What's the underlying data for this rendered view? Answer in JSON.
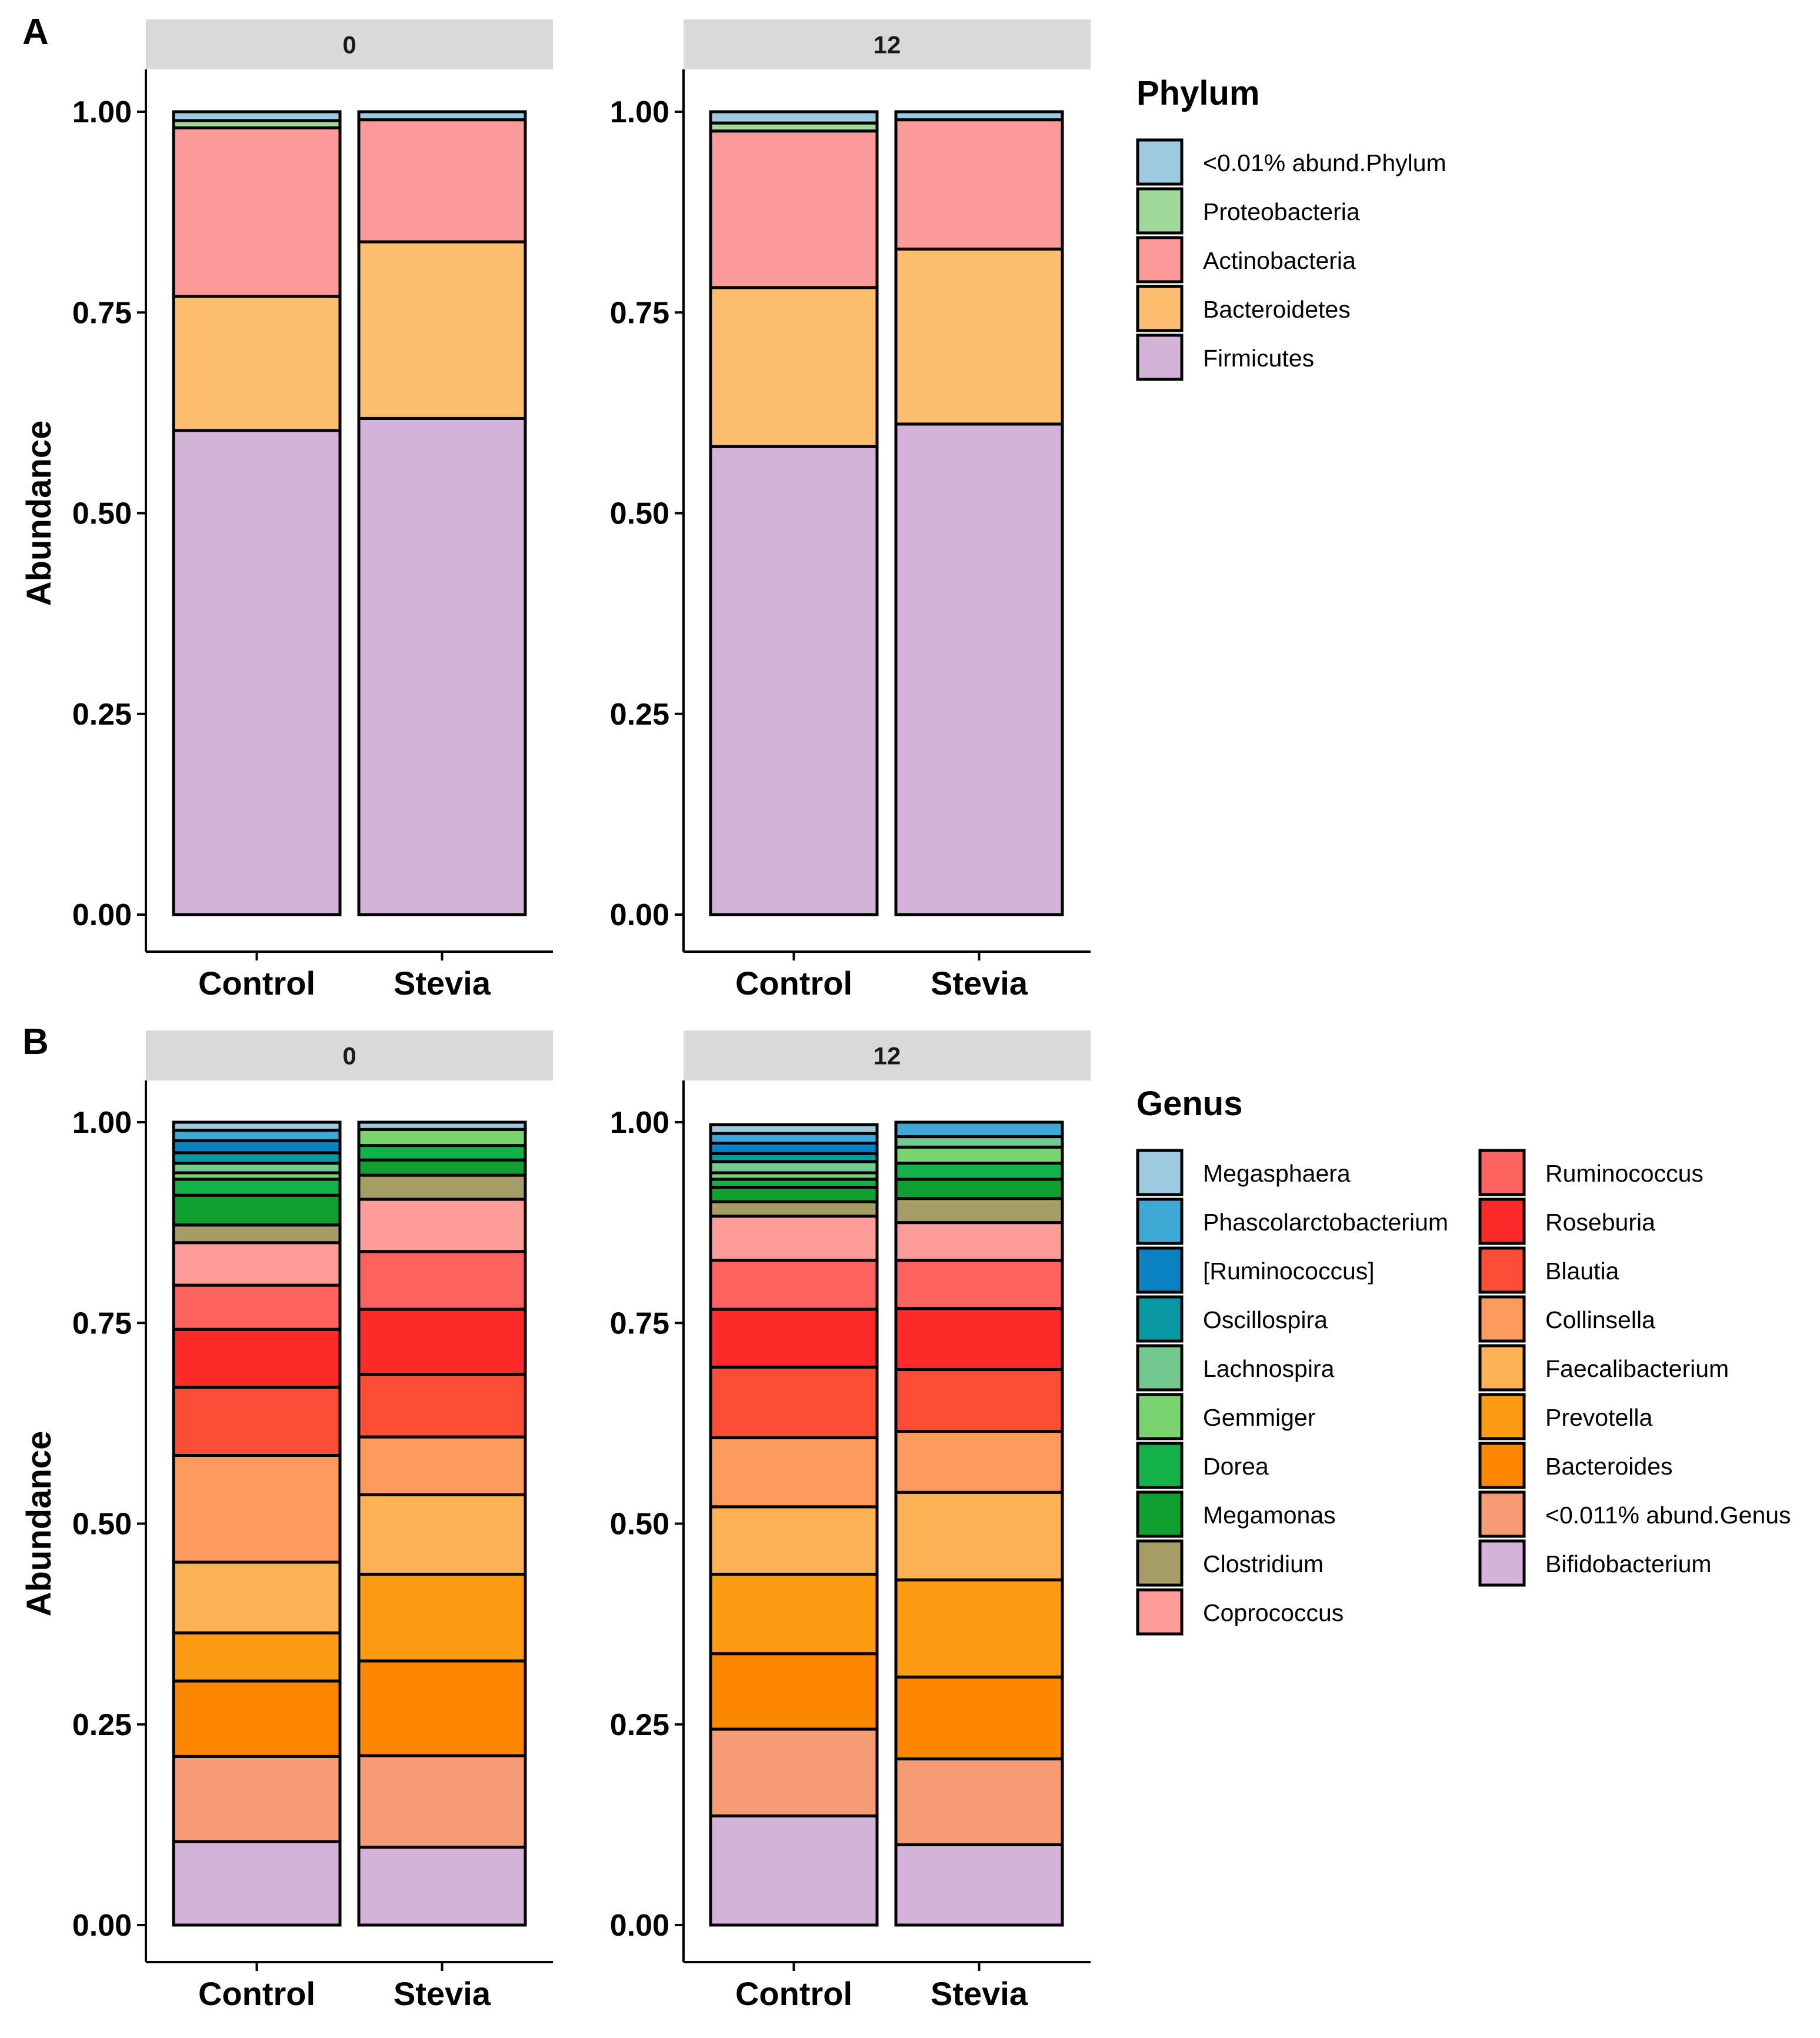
{
  "chart_data": [
    {
      "panel": "A",
      "type": "bar",
      "stacked": true,
      "ylabel": "Abundance",
      "ylim": [
        0,
        1
      ],
      "yticks": [
        "0.00",
        "0.25",
        "0.50",
        "0.75",
        "1.00"
      ],
      "categories": [
        "Control",
        "Stevia"
      ],
      "facets": [
        {
          "strip": "0",
          "bars": [
            {
              "group": "Control",
              "values": [
                0.603,
                0.167,
                0.21,
                0.009,
                0.011
              ]
            },
            {
              "group": "Stevia",
              "values": [
                0.618,
                0.22,
                0.152,
                0.0,
                0.01
              ]
            }
          ]
        },
        {
          "strip": "12",
          "bars": [
            {
              "group": "Control",
              "values": [
                0.583,
                0.198,
                0.195,
                0.01,
                0.014
              ]
            },
            {
              "group": "Stevia",
              "values": [
                0.611,
                0.218,
                0.161,
                0.0,
                0.01
              ]
            }
          ]
        }
      ],
      "legend": {
        "title": "Phylum",
        "entries": [
          {
            "name": "<0.01% abund.Phylum",
            "color": "#9ecae1"
          },
          {
            "name": "Proteobacteria",
            "color": "#a1d99b"
          },
          {
            "name": "Actinobacteria",
            "color": "#fb9a99"
          },
          {
            "name": "Bacteroidetes",
            "color": "#fdbf6f"
          },
          {
            "name": "Firmicutes",
            "color": "#d4b3d8"
          }
        ]
      }
    },
    {
      "panel": "B",
      "type": "bar",
      "stacked": true,
      "ylabel": "Abundance",
      "ylim": [
        0,
        1
      ],
      "yticks": [
        "0.00",
        "0.25",
        "0.50",
        "0.75",
        "1.00"
      ],
      "categories": [
        "Control",
        "Stevia"
      ],
      "facets": [
        {
          "strip": "0",
          "bars": [
            {
              "group": "Control",
              "values": [
                0.104,
                0.106,
                0.094,
                0.06,
                0.088,
                0.133,
                0.085,
                0.072,
                0.055,
                0.053,
                0.022,
                0.037,
                0.02,
                0.008,
                0.012,
                0.013,
                0.015,
                0.013,
                0.01
              ]
            },
            {
              "group": "Stevia",
              "values": [
                0.097,
                0.114,
                0.118,
                0.108,
                0.099,
                0.072,
                0.078,
                0.081,
                0.072,
                0.065,
                0.03,
                0.019,
                0.018,
                0.02,
                0.0,
                0.0,
                0.0,
                0.0,
                0.009
              ]
            }
          ]
        },
        {
          "strip": "12",
          "bars": [
            {
              "group": "Control",
              "values": [
                0.136,
                0.108,
                0.094,
                0.099,
                0.084,
                0.086,
                0.088,
                0.072,
                0.061,
                0.055,
                0.018,
                0.018,
                0.01,
                0.008,
                0.014,
                0.01,
                0.013,
                0.012,
                0.011
              ]
            },
            {
              "group": "Stevia",
              "values": [
                0.1,
                0.107,
                0.102,
                0.121,
                0.109,
                0.076,
                0.077,
                0.076,
                0.06,
                0.047,
                0.03,
                0.024,
                0.02,
                0.02,
                0.013,
                0.0,
                0.0,
                0.018,
                0.0
              ]
            }
          ]
        }
      ],
      "legend": {
        "title": "Genus",
        "stack_order": [
          "Bifidobacterium",
          "<0.011% abund.Genus",
          "Bacteroides",
          "Prevotella",
          "Faecalibacterium",
          "Collinsella",
          "Blautia",
          "Roseburia",
          "Ruminococcus",
          "Coprococcus",
          "Clostridium",
          "Megamonas",
          "Dorea",
          "Gemmiger",
          "Lachnospira",
          "Oscillospira",
          "[Ruminococcus]",
          "Phascolarctobacterium",
          "Megasphaera"
        ],
        "entries": [
          {
            "name": "Megasphaera",
            "color": "#9ecae1"
          },
          {
            "name": "Phascolarctobacterium",
            "color": "#3fa9d5"
          },
          {
            "name": "[Ruminococcus]",
            "color": "#0a81c1"
          },
          {
            "name": "Oscillospira",
            "color": "#0b98a5"
          },
          {
            "name": "Lachnospira",
            "color": "#74c990"
          },
          {
            "name": "Gemmiger",
            "color": "#79d36f"
          },
          {
            "name": "Dorea",
            "color": "#12b14a"
          },
          {
            "name": "Megamonas",
            "color": "#10a02f"
          },
          {
            "name": "Clostridium",
            "color": "#a69d66"
          },
          {
            "name": "Coprococcus",
            "color": "#fd9c98"
          },
          {
            "name": "Ruminococcus",
            "color": "#fd625f"
          },
          {
            "name": "Roseburia",
            "color": "#fd2a2a"
          },
          {
            "name": "Blautia",
            "color": "#fd4d36"
          },
          {
            "name": "Collinsella",
            "color": "#fd9a5d"
          },
          {
            "name": "Faecalibacterium",
            "color": "#fdb256"
          },
          {
            "name": "Prevotella",
            "color": "#fd9b13"
          },
          {
            "name": "Bacteroides",
            "color": "#fd8700"
          },
          {
            "name": "<0.011% abund.Genus",
            "color": "#f79b75"
          },
          {
            "name": "Bifidobacterium",
            "color": "#d4b3d8"
          }
        ]
      }
    }
  ]
}
